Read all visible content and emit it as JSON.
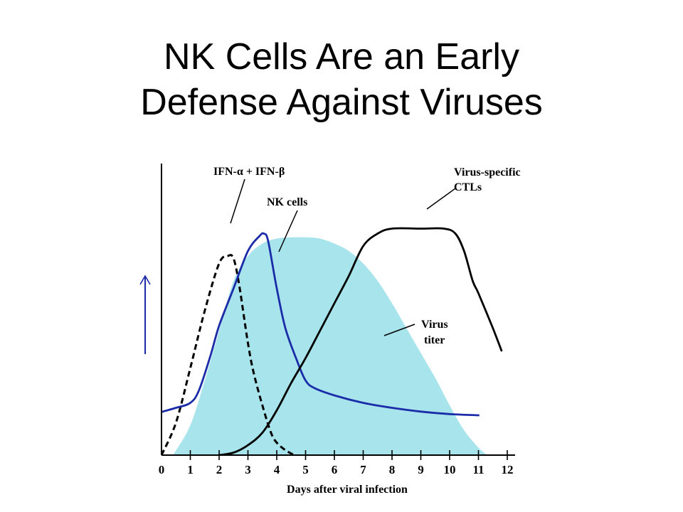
{
  "title": {
    "line1": "NK Cells Are an Early",
    "line2": "Defense Against Viruses"
  },
  "chart_data": {
    "type": "line",
    "xlabel": "Days after viral infection",
    "ylabel": "",
    "xlim": [
      0,
      12
    ],
    "x_ticks": [
      0,
      1,
      2,
      3,
      4,
      5,
      6,
      7,
      8,
      9,
      10,
      11,
      12
    ],
    "ylim": [
      0,
      100
    ],
    "grid": false,
    "legend": "none",
    "colors": {
      "ifn": "#000000",
      "nk": "#1b2ca8",
      "ctl": "#000000",
      "virus_fill": "#a8e4ec",
      "arrow": "#1b2ca8"
    },
    "series": [
      {
        "name": "IFN-α + IFN-β",
        "style": "dashed",
        "x": [
          0,
          0.5,
          1,
          1.5,
          2,
          2.3,
          2.5,
          2.7,
          3,
          3.2,
          3.5,
          3.8,
          4,
          4.3,
          4.6
        ],
        "y": [
          0,
          13,
          35,
          58,
          77,
          80,
          79,
          68,
          45,
          33,
          20,
          9,
          5,
          2,
          0
        ]
      },
      {
        "name": "NK cells",
        "style": "solid",
        "x": [
          -0.1,
          0.5,
          1,
          1.3,
          1.7,
          2,
          2.5,
          3,
          3.4,
          3.55,
          3.7,
          4,
          4.3,
          4.7,
          5,
          5.3,
          6,
          7,
          8,
          9,
          10,
          11
        ],
        "y": [
          17,
          19,
          21,
          26,
          40,
          52,
          67,
          82,
          88,
          89,
          86,
          67,
          51,
          38,
          30,
          27,
          24,
          21,
          19,
          17.5,
          16.5,
          16
        ]
      },
      {
        "name": "Virus-specific CTLs",
        "style": "solid",
        "x": [
          2,
          2.5,
          3,
          3.5,
          4,
          4.5,
          5,
          5.5,
          6,
          6.5,
          7,
          7.5,
          8,
          9,
          9.8,
          10.2,
          10.5,
          10.8,
          11,
          11.5,
          11.8
        ],
        "y": [
          0,
          1,
          4,
          9,
          18,
          29,
          39,
          50,
          61,
          72,
          84,
          89,
          91,
          91,
          91,
          89,
          82,
          70,
          65,
          51,
          42
        ]
      },
      {
        "name": "Virus titer",
        "style": "filled-area",
        "x": [
          0.4,
          1,
          1.5,
          2,
          2.5,
          3,
          3.5,
          4,
          4.5,
          5,
          5.5,
          6,
          6.5,
          7,
          7.5,
          8,
          8.5,
          9,
          9.5,
          10,
          10.5,
          11,
          11.3
        ],
        "y": [
          0,
          12,
          30,
          50,
          70,
          80,
          85,
          87,
          87.5,
          87.5,
          87,
          85,
          82,
          77,
          70,
          61,
          51,
          41,
          31,
          20,
          10,
          3,
          0
        ]
      }
    ],
    "annotations": [
      {
        "label": "IFN-α + IFN-β",
        "points_to": "IFN-α + IFN-β"
      },
      {
        "label": "NK cells",
        "points_to": "NK cells"
      },
      {
        "line1": "Virus-specific",
        "line2": "CTLs",
        "points_to": "Virus-specific CTLs"
      },
      {
        "line1": "Virus",
        "line2": "titer",
        "points_to": "Virus titer"
      }
    ]
  }
}
